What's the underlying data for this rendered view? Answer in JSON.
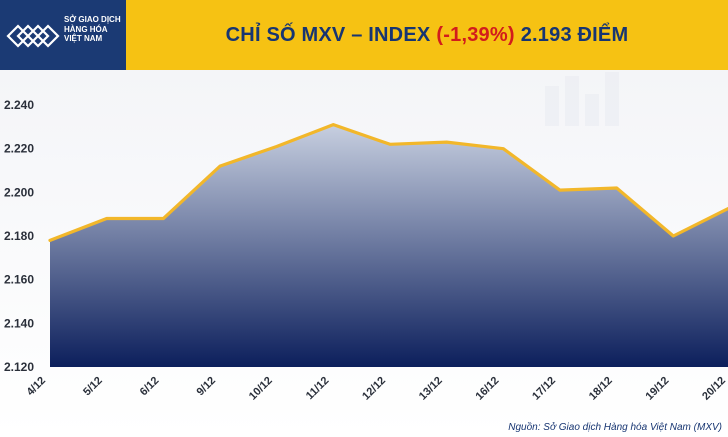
{
  "logo": {
    "lines": [
      "SỞ GIAO DỊCH",
      "HÀNG HÓA",
      "VIỆT NAM"
    ]
  },
  "title": {
    "prefix": "CHỈ SỐ MXV – INDEX",
    "change": "(-1,39%)",
    "suffix": "2.193 ĐIỂM"
  },
  "source": "Nguồn: Sở Giao dịch Hàng hóa Việt Nam (MXV)",
  "colors": {
    "brand_navy": "#1b3a74",
    "title_band": "#f6c213",
    "line": "#f2b72a",
    "area_top": "#c7cfe0",
    "area_bottom": "#0c1f5c",
    "negative": "#d21c1c"
  },
  "chart_data": {
    "type": "area",
    "title": "CHỈ SỐ MXV – INDEX (-1,39%) 2.193 ĐIỂM",
    "categories": [
      "4/12",
      "5/12",
      "6/12",
      "9/12",
      "10/12",
      "11/12",
      "12/12",
      "13/12",
      "16/12",
      "17/12",
      "18/12",
      "19/12",
      "20/12"
    ],
    "series": [
      {
        "values": [
          2178,
          2188,
          2188,
          2212,
          2221,
          2231,
          2222,
          2223,
          2220,
          2201,
          2202,
          2180,
          2193
        ]
      }
    ],
    "y_ticks": [
      "2.120",
      "2.140",
      "2.160",
      "2.180",
      "2.200",
      "2.220",
      "2.240"
    ],
    "ylim": [
      2120,
      2240
    ],
    "grid": false,
    "legend": "none"
  }
}
